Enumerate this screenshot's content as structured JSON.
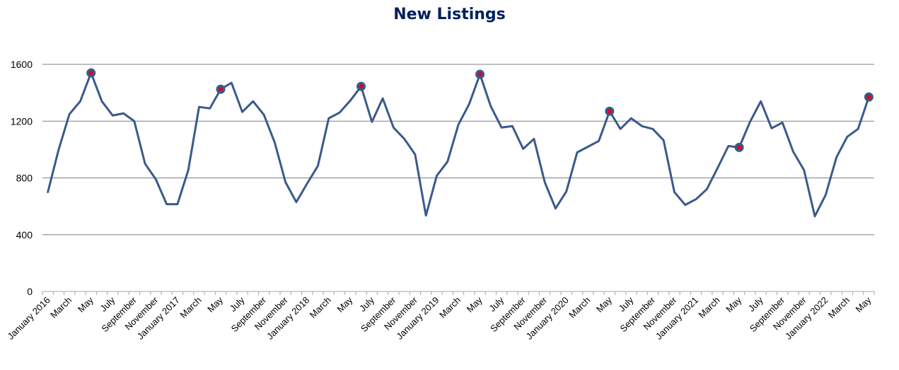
{
  "chart_data": {
    "type": "line",
    "title": "New Listings",
    "xlabel": "",
    "ylabel": "",
    "ylim": [
      0,
      1750
    ],
    "yticks": [
      0,
      400,
      800,
      1200,
      1600
    ],
    "grid": "horizontal",
    "legend": "none",
    "x_tick_labels": [
      "January 2016",
      "March",
      "May",
      "July",
      "September",
      "November",
      "January 2017",
      "March",
      "May",
      "July",
      "September",
      "November",
      "January 2018",
      "March",
      "May",
      "July",
      "September",
      "November",
      "January 2019",
      "March",
      "May",
      "July",
      "September",
      "November",
      "January 2020",
      "March",
      "May",
      "July",
      "September",
      "November",
      "January 2021",
      "March",
      "May",
      "July",
      "September",
      "November",
      "January 2022",
      "March",
      "May"
    ],
    "x": [
      "Jan 2016",
      "Feb 2016",
      "Mar 2016",
      "Apr 2016",
      "May 2016",
      "Jun 2016",
      "Jul 2016",
      "Aug 2016",
      "Sep 2016",
      "Oct 2016",
      "Nov 2016",
      "Dec 2016",
      "Jan 2017",
      "Feb 2017",
      "Mar 2017",
      "Apr 2017",
      "May 2017",
      "Jun 2017",
      "Jul 2017",
      "Aug 2017",
      "Sep 2017",
      "Oct 2017",
      "Nov 2017",
      "Dec 2017",
      "Jan 2018",
      "Feb 2018",
      "Mar 2018",
      "Apr 2018",
      "May 2018",
      "Jun 2018",
      "Jul 2018",
      "Aug 2018",
      "Sep 2018",
      "Oct 2018",
      "Nov 2018",
      "Dec 2018",
      "Jan 2019",
      "Feb 2019",
      "Mar 2019",
      "Apr 2019",
      "May 2019",
      "Jun 2019",
      "Jul 2019",
      "Aug 2019",
      "Sep 2019",
      "Oct 2019",
      "Nov 2019",
      "Dec 2019",
      "Jan 2020",
      "Feb 2020",
      "Mar 2020",
      "Apr 2020",
      "May 2020",
      "Jun 2020",
      "Jul 2020",
      "Aug 2020",
      "Sep 2020",
      "Oct 2020",
      "Nov 2020",
      "Dec 2020",
      "Jan 2021",
      "Feb 2021",
      "Mar 2021",
      "Apr 2021",
      "May 2021",
      "Jun 2021",
      "Jul 2021",
      "Aug 2021",
      "Sep 2021",
      "Oct 2021",
      "Nov 2021",
      "Dec 2021",
      "Jan 2022",
      "Feb 2022",
      "Mar 2022",
      "Apr 2022",
      "May 2022"
    ],
    "series": [
      {
        "values": [
          700,
          1000,
          1250,
          1340,
          1540,
          1340,
          1240,
          1255,
          1200,
          900,
          790,
          615,
          615,
          855,
          1300,
          1290,
          1425,
          1470,
          1265,
          1340,
          1245,
          1050,
          770,
          630,
          760,
          885,
          1220,
          1260,
          1345,
          1445,
          1195,
          1360,
          1155,
          1075,
          965,
          535,
          815,
          915,
          1175,
          1320,
          1530,
          1305,
          1155,
          1165,
          1005,
          1075,
          770,
          585,
          705,
          980,
          1020,
          1060,
          1270,
          1145,
          1220,
          1165,
          1145,
          1065,
          700,
          610,
          650,
          720,
          870,
          1025,
          1015,
          1195,
          1340,
          1150,
          1190,
          985,
          855,
          530,
          680,
          945,
          1090,
          1145,
          1370
        ],
        "color": "#3A5A8C"
      }
    ],
    "highlighted_points": [
      {
        "x": "May 2016",
        "value": 1540
      },
      {
        "x": "May 2017",
        "value": 1425
      },
      {
        "x": "Jun 2018",
        "value": 1445
      },
      {
        "x": "May 2019",
        "value": 1530
      },
      {
        "x": "May 2020",
        "value": 1270
      },
      {
        "x": "May 2021",
        "value": 1015
      },
      {
        "x": "May 2022",
        "value": 1370
      }
    ],
    "highlight_color": "#E8000B"
  }
}
